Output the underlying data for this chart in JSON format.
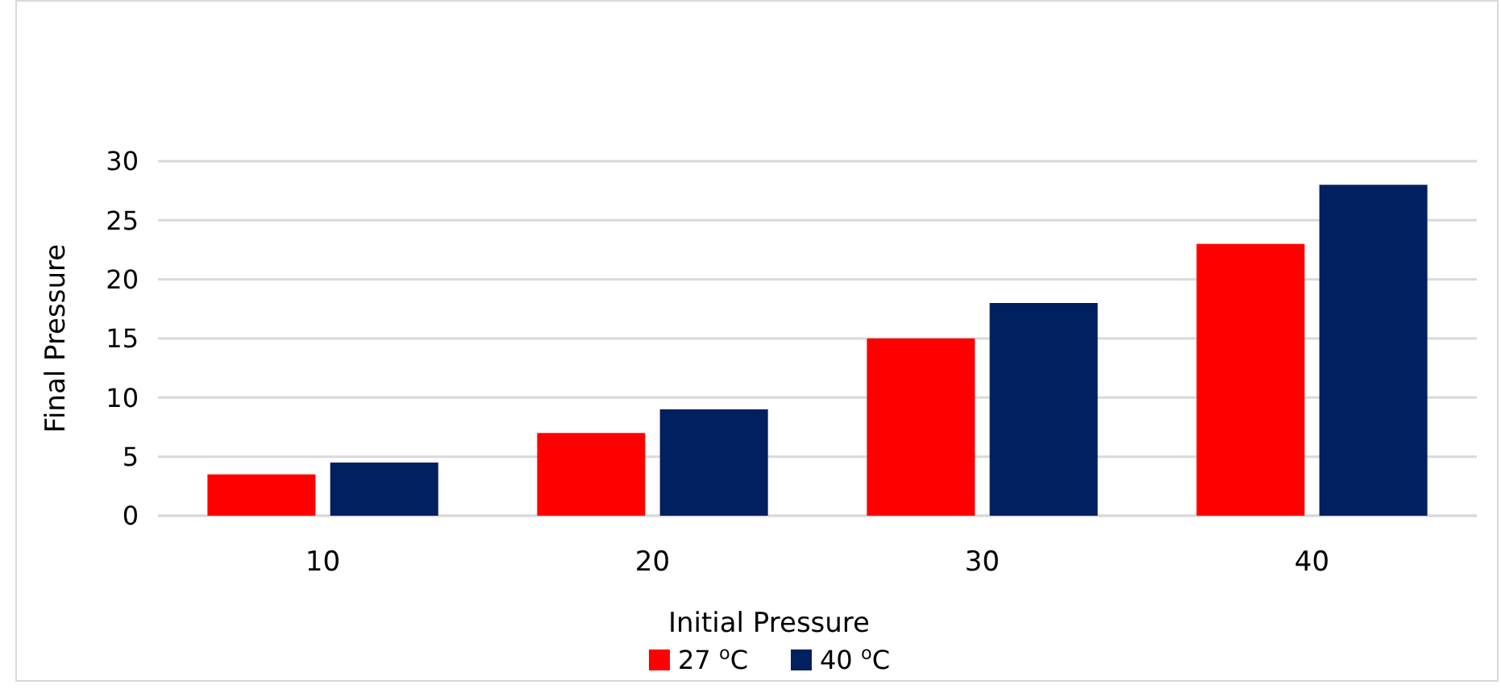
{
  "chart_data": {
    "type": "bar",
    "xlabel": "Initial Pressure",
    "ylabel": "Final Pressure",
    "categories": [
      "10",
      "20",
      "30",
      "40"
    ],
    "series": [
      {
        "name": "27 $^{o}$C",
        "color": "#ff0000",
        "values": [
          3.5,
          7,
          15,
          23
        ]
      },
      {
        "name": "40 $^{o}$C",
        "color": "#002060",
        "values": [
          4.5,
          9,
          18,
          28
        ]
      }
    ],
    "ylim": [
      0,
      30
    ],
    "yticks": [
      0,
      5,
      10,
      15,
      20,
      25,
      30
    ],
    "grid": "y",
    "legend": "bottom"
  }
}
